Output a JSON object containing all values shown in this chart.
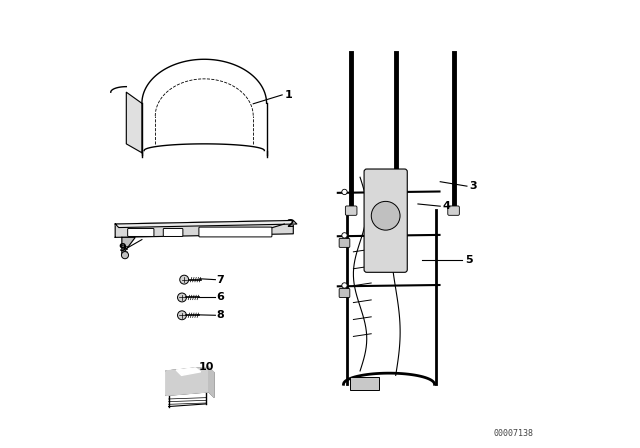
{
  "bg_color": "#ffffff",
  "line_color": "#000000",
  "fig_width": 6.4,
  "fig_height": 4.48,
  "dpi": 100,
  "watermark": "00007138"
}
